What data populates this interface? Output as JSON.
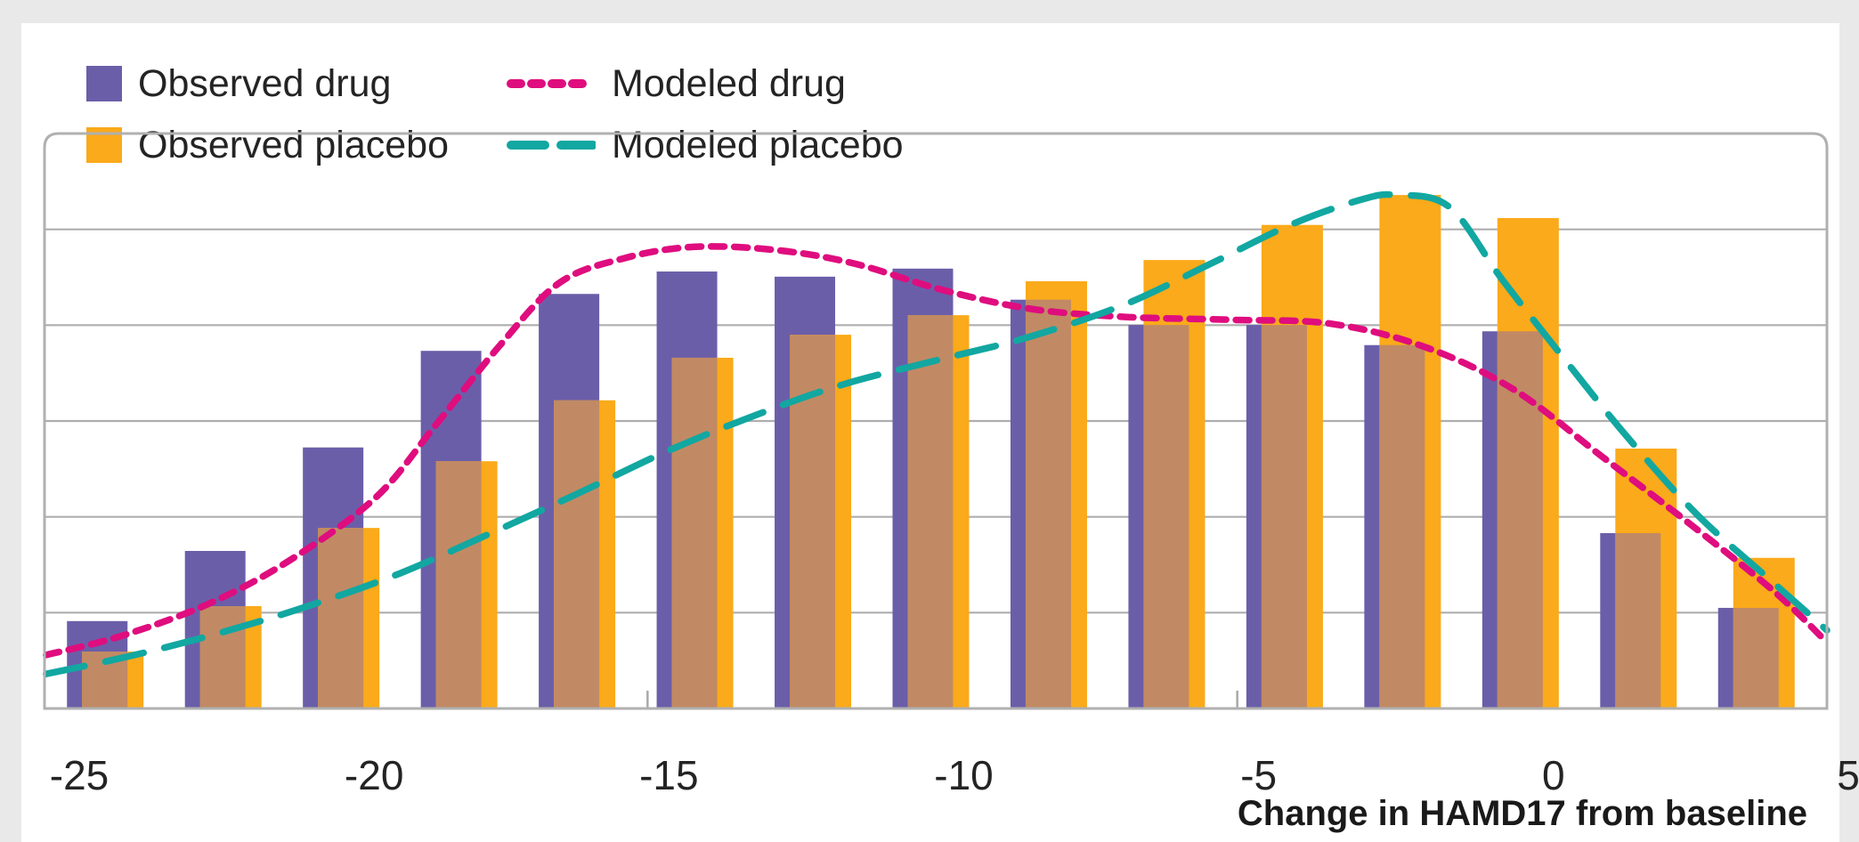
{
  "page": {
    "background_color": "#e9e9e9",
    "card_color": "#ffffff",
    "grid_color": "#aeaeae",
    "border_color": "#b0b0b0",
    "text_color": "#242424"
  },
  "legend": {
    "items": [
      {
        "label": "Observed drug",
        "color": "#6B5EA9",
        "swatch": "square"
      },
      {
        "label": "Observed placebo",
        "color": "#FAAA1A",
        "swatch": "square"
      },
      {
        "label": "Modeled drug",
        "color": "#DF0D7E",
        "swatch": "short-dash-line"
      },
      {
        "label": "Modeled placebo",
        "color": "#12A7A1",
        "swatch": "long-dash-line"
      }
    ]
  },
  "chart_data": {
    "type": "bar",
    "subtype": "histogram with overlaid density curves",
    "title": "",
    "xlabel": "Change in HAMD17 from baseline",
    "ylabel": "",
    "x_tick_labels": [
      "-25",
      "-20",
      "-15",
      "-10",
      "-5",
      "0",
      "5"
    ],
    "x_tick_values": [
      -25,
      -20,
      -15,
      -10,
      -5,
      0,
      5
    ],
    "x_range": [
      -25,
      5
    ],
    "y_axis_note": "no y-axis labels shown; values are relative heights 0-100 of plot area",
    "ylim": [
      0,
      100
    ],
    "gridlines": "horizontal, 5 inner lines (6 equal divisions)",
    "legend_position": "top-left above plot",
    "bin_width": 2,
    "categories": [
      -24,
      -22,
      -20,
      -18,
      -16,
      -14,
      -12,
      -10,
      -8,
      -6,
      -4,
      -2,
      0,
      2,
      4
    ],
    "series": [
      {
        "name": "Observed drug",
        "type": "bar",
        "color": "#6B5EA9",
        "values": [
          15.2,
          27.4,
          45.4,
          62.2,
          72.1,
          76.0,
          75.1,
          76.5,
          71.1,
          66.7,
          66.7,
          63.2,
          65.6,
          30.5,
          17.5
        ]
      },
      {
        "name": "Observed placebo",
        "type": "bar",
        "color": "#FAAA1A",
        "overlap_color": "#C18A64",
        "values": [
          9.9,
          17.8,
          31.4,
          43.0,
          53.6,
          61.0,
          65.0,
          68.4,
          74.3,
          78.0,
          84.1,
          89.3,
          85.3,
          45.2,
          26.2
        ]
      },
      {
        "name": "Modeled drug",
        "type": "line",
        "color": "#DF0D7E",
        "dash": "short",
        "points": [
          [
            -25.2,
            9.3
          ],
          [
            -23.9,
            12.7
          ],
          [
            -22.4,
            18.4
          ],
          [
            -21.0,
            26.2
          ],
          [
            -19.6,
            36.8
          ],
          [
            -18.6,
            49.2
          ],
          [
            -17.5,
            63.2
          ],
          [
            -16.5,
            74.0
          ],
          [
            -15.4,
            78.3
          ],
          [
            -14.2,
            80.3
          ],
          [
            -12.8,
            79.7
          ],
          [
            -11.5,
            77.4
          ],
          [
            -10.0,
            72.8
          ],
          [
            -8.5,
            69.5
          ],
          [
            -6.9,
            68.1
          ],
          [
            -5.1,
            67.6
          ],
          [
            -3.4,
            66.9
          ],
          [
            -1.8,
            62.8
          ],
          [
            -0.3,
            55.4
          ],
          [
            1.2,
            43.7
          ],
          [
            2.7,
            31.9
          ],
          [
            4.1,
            20.4
          ],
          [
            5.0,
            11.5
          ]
        ]
      },
      {
        "name": "Modeled placebo",
        "type": "line",
        "color": "#12A7A1",
        "dash": "long",
        "points": [
          [
            -25.2,
            6.0
          ],
          [
            -23.7,
            9.3
          ],
          [
            -22.2,
            13.3
          ],
          [
            -20.7,
            18.0
          ],
          [
            -19.2,
            23.5
          ],
          [
            -17.7,
            30.3
          ],
          [
            -16.2,
            37.3
          ],
          [
            -14.7,
            44.6
          ],
          [
            -13.2,
            50.9
          ],
          [
            -11.7,
            56.3
          ],
          [
            -10.0,
            60.8
          ],
          [
            -8.5,
            64.7
          ],
          [
            -6.9,
            70.3
          ],
          [
            -5.5,
            77.1
          ],
          [
            -4.1,
            84.1
          ],
          [
            -2.9,
            88.5
          ],
          [
            -2.3,
            89.3
          ],
          [
            -1.4,
            87.2
          ],
          [
            -0.5,
            74.5
          ],
          [
            0.6,
            60.1
          ],
          [
            1.6,
            47.4
          ],
          [
            2.8,
            33.7
          ],
          [
            4.1,
            21.8
          ],
          [
            5.0,
            13.6
          ]
        ]
      }
    ]
  },
  "axis_title": "Change in HAMD17 from baseline"
}
